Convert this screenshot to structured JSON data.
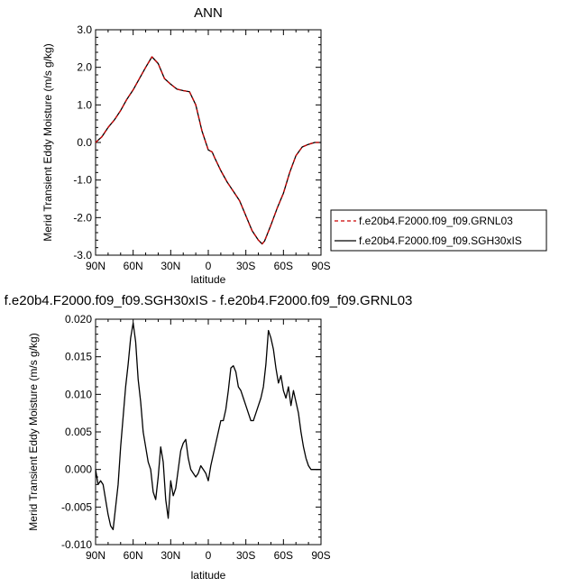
{
  "colors": {
    "frame": "#000000",
    "series_red": "#cc0000",
    "series_black": "#000000"
  },
  "chart_data": [
    {
      "type": "line",
      "title": "ANN",
      "xlabel": "latitude",
      "ylabel": "Merid Transient Eddy Moisture (m/s g/kg)",
      "xlim": [
        90,
        -90
      ],
      "ylim": [
        -3.0,
        3.0
      ],
      "xticks": [
        90,
        60,
        30,
        0,
        -30,
        -60,
        -90
      ],
      "xtick_labels": [
        "90N",
        "60N",
        "30N",
        "0",
        "30S",
        "60S",
        "90S"
      ],
      "yticks": [
        3.0,
        2.0,
        1.0,
        0.0,
        -1.0,
        -2.0,
        -3.0
      ],
      "ytick_labels": [
        "3.0",
        "2.0",
        "1.0",
        "0.0",
        "-1.0",
        "-2.0",
        "-3.0"
      ],
      "grid": false,
      "legend": "right",
      "x": [
        90,
        85,
        80,
        75,
        70,
        65,
        60,
        55,
        50,
        45,
        40,
        35,
        30,
        25,
        20,
        15,
        10,
        5,
        0,
        -3,
        -5,
        -10,
        -15,
        -20,
        -25,
        -30,
        -35,
        -40,
        -43,
        -45,
        -50,
        -55,
        -60,
        -65,
        -70,
        -75,
        -80,
        -85,
        -90
      ],
      "series": [
        {
          "name": "f.e20b4.F2000.f09_f09.GRNL03",
          "style": "dashed",
          "color": "#cc0000",
          "values": [
            0.0,
            0.15,
            0.4,
            0.6,
            0.85,
            1.15,
            1.4,
            1.7,
            2.0,
            2.28,
            2.1,
            1.7,
            1.55,
            1.42,
            1.38,
            1.35,
            1.0,
            0.3,
            -0.2,
            -0.25,
            -0.4,
            -0.75,
            -1.05,
            -1.3,
            -1.55,
            -1.95,
            -2.35,
            -2.6,
            -2.7,
            -2.62,
            -2.2,
            -1.75,
            -1.35,
            -0.8,
            -0.35,
            -0.12,
            -0.05,
            0.0,
            0.0
          ]
        },
        {
          "name": "f.e20b4.F2000.f09_f09.SGH30xIS",
          "style": "solid",
          "color": "#000000",
          "values": [
            0.0,
            0.15,
            0.4,
            0.6,
            0.85,
            1.15,
            1.4,
            1.7,
            2.0,
            2.28,
            2.1,
            1.7,
            1.55,
            1.42,
            1.38,
            1.35,
            1.0,
            0.3,
            -0.2,
            -0.25,
            -0.4,
            -0.75,
            -1.05,
            -1.3,
            -1.55,
            -1.95,
            -2.35,
            -2.6,
            -2.7,
            -2.62,
            -2.2,
            -1.75,
            -1.35,
            -0.8,
            -0.35,
            -0.12,
            -0.05,
            0.0,
            0.0
          ]
        }
      ]
    },
    {
      "type": "line",
      "title": "f.e20b4.F2000.f09_f09.SGH30xIS - f.e20b4.F2000.f09_f09.GRNL03",
      "xlabel": "latitude",
      "ylabel": "Merid Transient Eddy Moisture (m/s g/kg)",
      "xlim": [
        90,
        -90
      ],
      "ylim": [
        -0.01,
        0.02
      ],
      "xticks": [
        90,
        60,
        30,
        0,
        -30,
        -60,
        -90
      ],
      "xtick_labels": [
        "90N",
        "60N",
        "30N",
        "0",
        "30S",
        "60S",
        "90S"
      ],
      "yticks": [
        0.02,
        0.015,
        0.01,
        0.005,
        0.0,
        -0.005,
        -0.01
      ],
      "ytick_labels": [
        "0.020",
        "0.015",
        "0.010",
        "0.005",
        "0.000",
        "-0.005",
        "-0.010"
      ],
      "grid": false,
      "x": [
        90,
        88,
        86,
        84,
        82,
        80,
        78,
        76,
        74,
        72,
        70,
        68,
        66,
        64,
        62,
        60,
        58,
        56,
        54,
        52,
        50,
        48,
        46,
        44,
        42,
        40,
        38,
        36,
        34,
        32,
        30,
        28,
        26,
        24,
        22,
        20,
        18,
        16,
        14,
        12,
        10,
        8,
        6,
        4,
        2,
        0,
        -2,
        -4,
        -6,
        -8,
        -10,
        -12,
        -14,
        -16,
        -18,
        -20,
        -22,
        -24,
        -26,
        -28,
        -30,
        -32,
        -34,
        -36,
        -38,
        -40,
        -42,
        -44,
        -46,
        -48,
        -50,
        -52,
        -54,
        -56,
        -58,
        -60,
        -62,
        -64,
        -66,
        -68,
        -70,
        -72,
        -74,
        -76,
        -78,
        -80,
        -82,
        -84,
        -86,
        -88,
        -90
      ],
      "series": [
        {
          "name": "",
          "style": "solid",
          "color": "#000000",
          "values": [
            0.0,
            -0.002,
            -0.0015,
            -0.002,
            -0.004,
            -0.006,
            -0.0075,
            -0.008,
            -0.005,
            -0.002,
            0.003,
            0.007,
            0.011,
            0.014,
            0.0175,
            0.0195,
            0.017,
            0.012,
            0.009,
            0.005,
            0.003,
            0.001,
            0.0,
            -0.003,
            -0.004,
            -0.001,
            0.003,
            0.001,
            -0.004,
            -0.0065,
            -0.0015,
            -0.0035,
            -0.0025,
            0.0,
            0.0025,
            0.0035,
            0.004,
            0.0015,
            0.0,
            -0.0005,
            -0.001,
            -0.0005,
            0.0005,
            0.0,
            -0.0005,
            -0.0015,
            0.0005,
            0.002,
            0.0035,
            0.005,
            0.0065,
            0.0065,
            0.008,
            0.0105,
            0.0135,
            0.0138,
            0.013,
            0.011,
            0.0105,
            0.0095,
            0.0085,
            0.0075,
            0.0065,
            0.0065,
            0.0075,
            0.0085,
            0.0095,
            0.011,
            0.014,
            0.0185,
            0.0175,
            0.016,
            0.0135,
            0.0115,
            0.0125,
            0.0105,
            0.0095,
            0.011,
            0.0085,
            0.0105,
            0.009,
            0.0075,
            0.005,
            0.003,
            0.0015,
            0.0005,
            0.0,
            0.0,
            0.0,
            0.0,
            0.0
          ]
        }
      ]
    }
  ]
}
